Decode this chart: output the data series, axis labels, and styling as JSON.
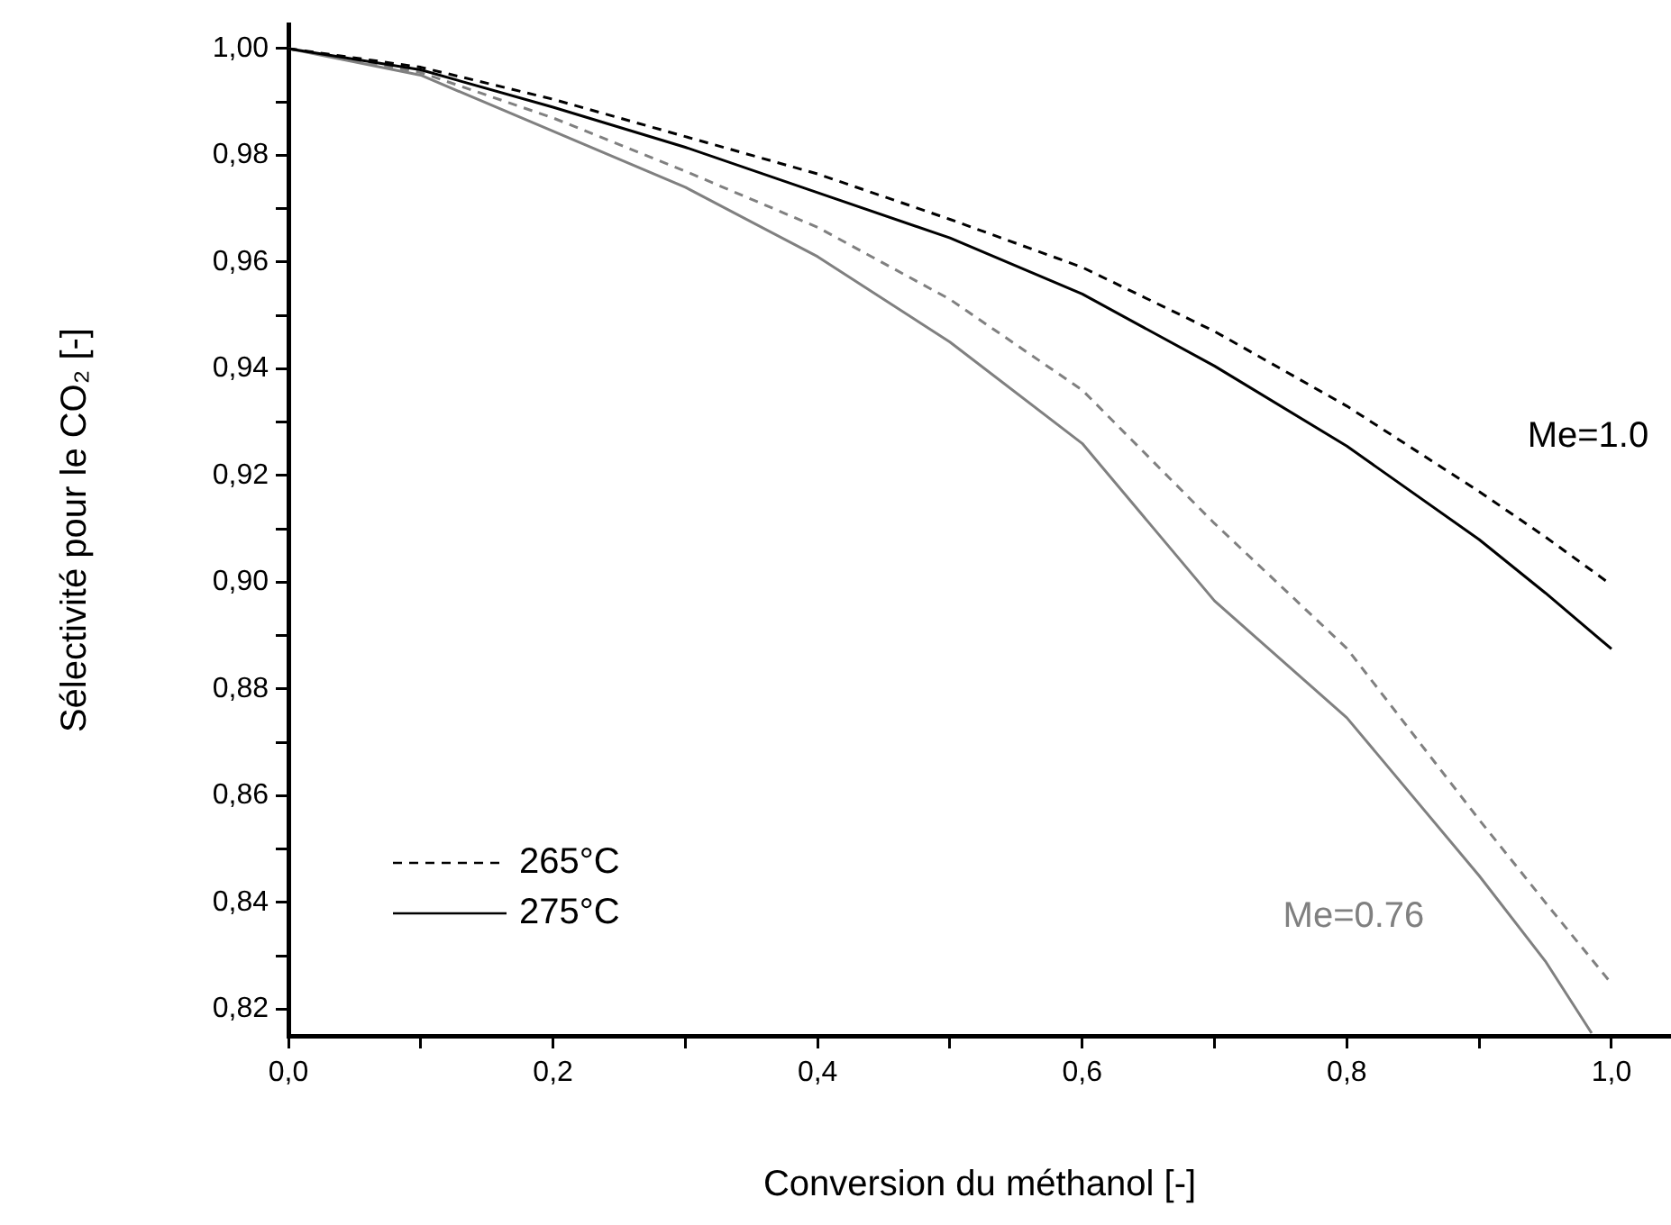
{
  "chart_data": {
    "type": "line",
    "xlabel": "Conversion du méthanol [-]",
    "ylabel": "Sélectivité pour le CO₂ [-]",
    "xlim": [
      0,
      1.045
    ],
    "ylim": [
      0.815,
      1.0045
    ],
    "xticks": [
      {
        "value": 0,
        "label": "0,0"
      },
      {
        "value": 0.1,
        "label": null
      },
      {
        "value": 0.2,
        "label": "0,2"
      },
      {
        "value": 0.3,
        "label": null
      },
      {
        "value": 0.4,
        "label": "0,4"
      },
      {
        "value": 0.5,
        "label": null
      },
      {
        "value": 0.6,
        "label": "0,6"
      },
      {
        "value": 0.7,
        "label": null
      },
      {
        "value": 0.8,
        "label": "0,8"
      },
      {
        "value": 0.9,
        "label": null
      },
      {
        "value": 1,
        "label": "1,0"
      }
    ],
    "yticks": [
      {
        "value": 0.82,
        "label": "0,82"
      },
      {
        "value": 0.83,
        "label": null
      },
      {
        "value": 0.84,
        "label": "0,84"
      },
      {
        "value": 0.85,
        "label": null
      },
      {
        "value": 0.86,
        "label": "0,86"
      },
      {
        "value": 0.87,
        "label": null
      },
      {
        "value": 0.88,
        "label": "0,88"
      },
      {
        "value": 0.89,
        "label": null
      },
      {
        "value": 0.9,
        "label": "0,90"
      },
      {
        "value": 0.91,
        "label": null
      },
      {
        "value": 0.92,
        "label": "0,92"
      },
      {
        "value": 0.93,
        "label": null
      },
      {
        "value": 0.94,
        "label": "0,94"
      },
      {
        "value": 0.95,
        "label": null
      },
      {
        "value": 0.96,
        "label": "0,96"
      },
      {
        "value": 0.97,
        "label": null
      },
      {
        "value": 0.98,
        "label": "0,98"
      },
      {
        "value": 0.99,
        "label": null
      },
      {
        "value": 1,
        "label": "1,00"
      }
    ],
    "grid": false,
    "legend": "bottom left",
    "marker": "none",
    "series": [
      {
        "name": "265°C",
        "color": "#000000",
        "line_style": "dashed",
        "x": [
          0,
          0.1,
          0.2,
          0.3,
          0.4,
          0.5,
          0.6,
          0.7,
          0.8,
          0.9,
          0.95,
          1
        ],
        "values": [
          1,
          0.9965,
          0.9905,
          0.9835,
          0.9765,
          0.968,
          0.959,
          0.947,
          0.933,
          0.917,
          0.9085,
          0.8995
        ]
      },
      {
        "name": "275°C",
        "color": "#000000",
        "line_style": "solid",
        "x": [
          0,
          0.1,
          0.2,
          0.3,
          0.4,
          0.5,
          0.6,
          0.7,
          0.8,
          0.9,
          0.95,
          1
        ],
        "values": [
          1,
          0.996,
          0.989,
          0.9815,
          0.973,
          0.9645,
          0.954,
          0.9405,
          0.9255,
          0.908,
          0.898,
          0.8875
        ]
      },
      {
        "color": "#808080",
        "line_style": "dashed",
        "x": [
          0,
          0.1,
          0.2,
          0.3,
          0.4,
          0.5,
          0.6,
          0.7,
          0.8,
          0.9,
          0.95,
          1
        ],
        "values": [
          1,
          0.9955,
          0.987,
          0.977,
          0.9665,
          0.953,
          0.936,
          0.911,
          0.8876,
          0.8555,
          0.84,
          0.8248
        ]
      },
      {
        "color": "#808080",
        "line_style": "solid",
        "x": [
          0,
          0.1,
          0.2,
          0.3,
          0.4,
          0.5,
          0.6,
          0.7,
          0.8,
          0.9,
          0.95,
          0.985
        ],
        "values": [
          1,
          0.995,
          0.9845,
          0.974,
          0.961,
          0.945,
          0.926,
          0.8965,
          0.8746,
          0.845,
          0.829,
          0.8155
        ]
      }
    ],
    "annotations": [
      "Me=1.0",
      "Me=0.76"
    ]
  }
}
